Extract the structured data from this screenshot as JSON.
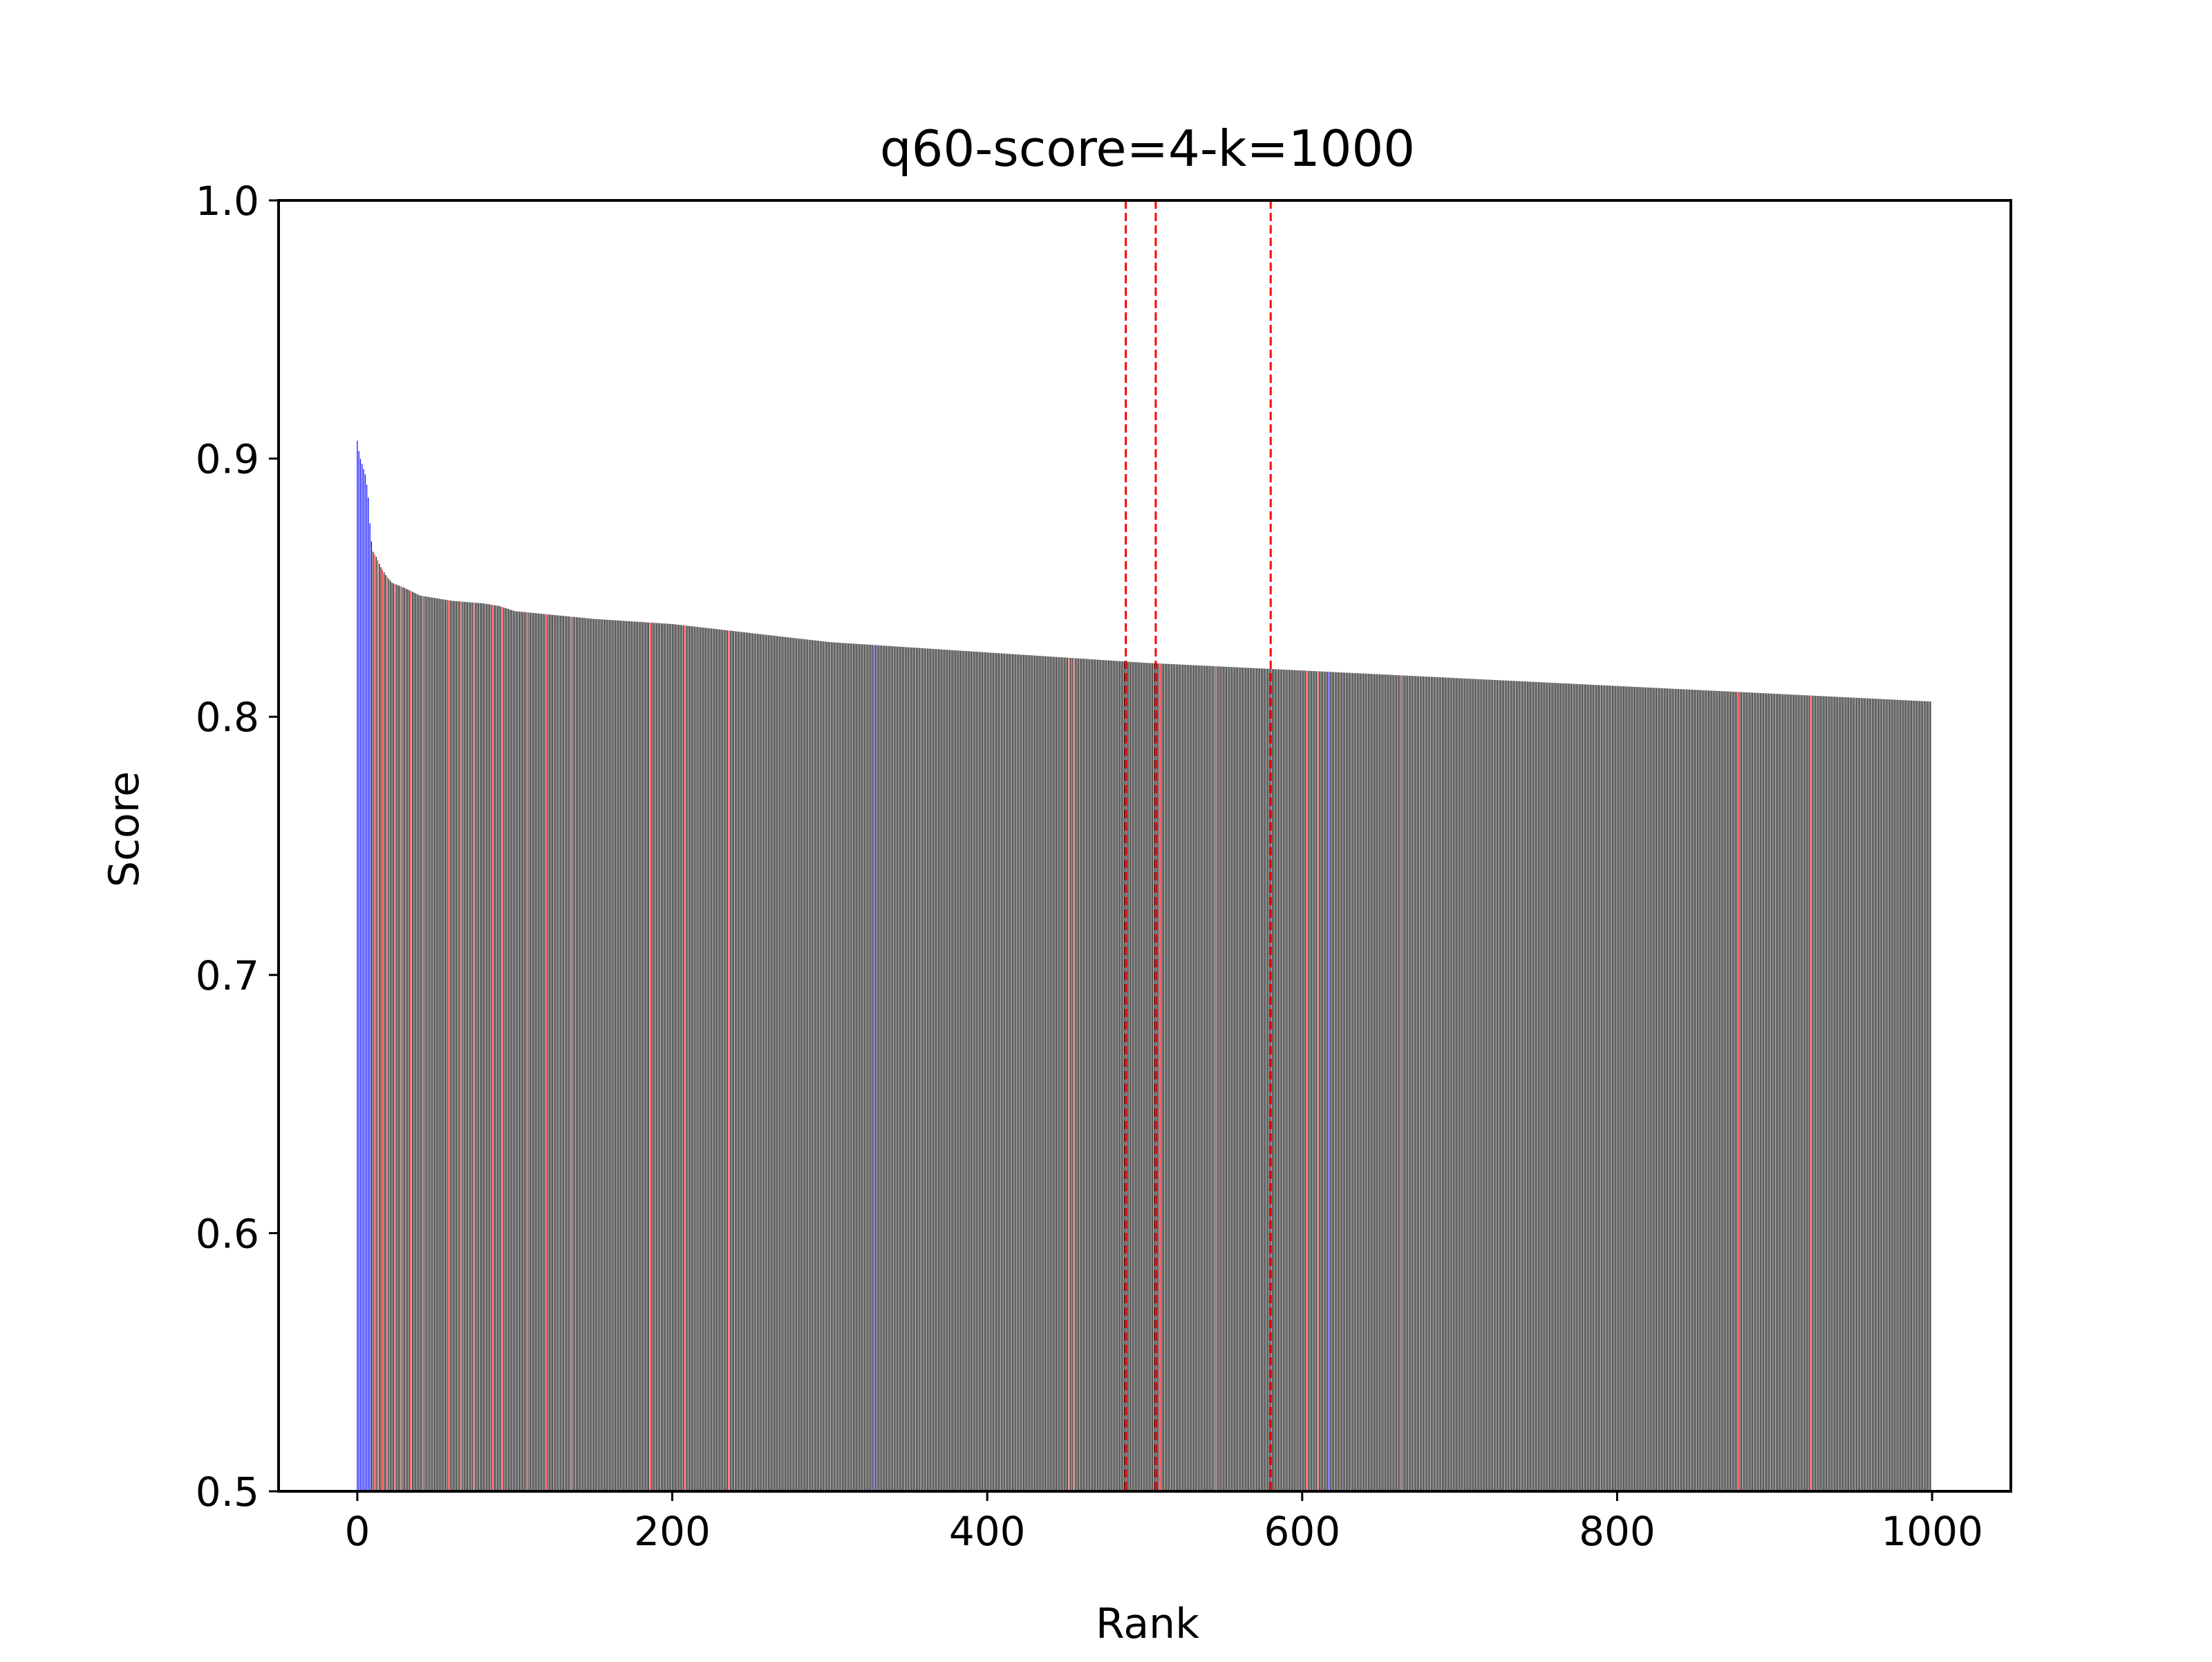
{
  "chart_data": {
    "type": "bar",
    "title": "q60-score=4-k=1000",
    "xlabel": "Rank",
    "ylabel": "Score",
    "xlim": [
      -50,
      1050
    ],
    "ylim": [
      0.5,
      1.0
    ],
    "xticks": [
      0,
      200,
      400,
      600,
      800,
      1000
    ],
    "xtick_labels": [
      "0",
      "200",
      "400",
      "600",
      "800",
      "1000"
    ],
    "yticks": [
      0.5,
      0.6,
      0.7,
      0.8,
      0.9,
      1.0
    ],
    "ytick_labels": [
      "0.5",
      "0.6",
      "0.7",
      "0.8",
      "0.9",
      "1.0"
    ],
    "grid": false,
    "bar_count": 1000,
    "default_bar_color": "#000000",
    "bar_edge_color": "#ffffff",
    "score_profile": [
      [
        0,
        0.907
      ],
      [
        1,
        0.903
      ],
      [
        2,
        0.9
      ],
      [
        3,
        0.898
      ],
      [
        4,
        0.896
      ],
      [
        5,
        0.894
      ],
      [
        6,
        0.89
      ],
      [
        7,
        0.885
      ],
      [
        8,
        0.875
      ],
      [
        9,
        0.868
      ],
      [
        10,
        0.864
      ],
      [
        12,
        0.862
      ],
      [
        15,
        0.858
      ],
      [
        18,
        0.855
      ],
      [
        22,
        0.852
      ],
      [
        30,
        0.85
      ],
      [
        40,
        0.847
      ],
      [
        60,
        0.845
      ],
      [
        80,
        0.844
      ],
      [
        90,
        0.843
      ],
      [
        100,
        0.841
      ],
      [
        150,
        0.838
      ],
      [
        200,
        0.836
      ],
      [
        300,
        0.829
      ],
      [
        400,
        0.825
      ],
      [
        500,
        0.821
      ],
      [
        600,
        0.818
      ],
      [
        700,
        0.815
      ],
      [
        800,
        0.812
      ],
      [
        900,
        0.809
      ],
      [
        999,
        0.806
      ]
    ],
    "blue_color": "#0000ff",
    "blue_ranks": [
      0,
      1,
      2,
      3,
      4,
      5,
      6,
      7,
      8,
      328,
      617
    ],
    "red_color": "#ff0000",
    "red_ranks": [
      11,
      13,
      16,
      19,
      24,
      28,
      34,
      42,
      58,
      66,
      74,
      86,
      92,
      108,
      120,
      136,
      186,
      208,
      236,
      452,
      455,
      510,
      545,
      603,
      610,
      663,
      877,
      923
    ],
    "vlines": [
      488,
      507,
      580
    ],
    "vline_color": "#ff0000",
    "vline_style": "dashed"
  }
}
